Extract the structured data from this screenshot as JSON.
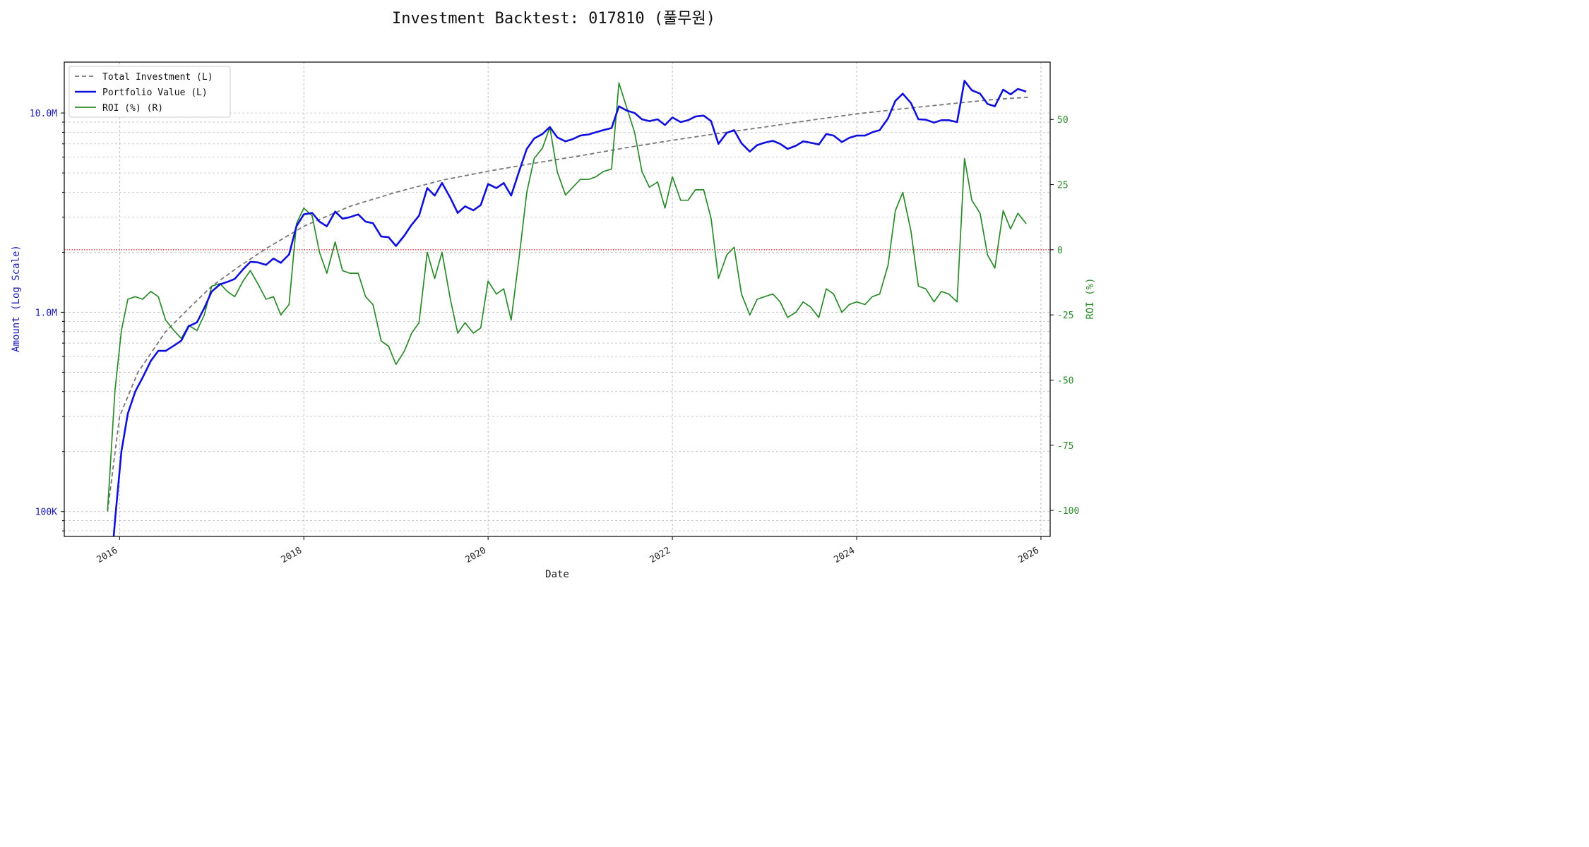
{
  "chart_data": {
    "type": "line",
    "title": "Investment Backtest: 017810 (풀무원)",
    "xlabel": "Date",
    "ylabel_left": "Amount (Log Scale)",
    "ylabel_right": "ROI (%)",
    "left_axis": {
      "scale": "log",
      "range": [
        75000,
        18000000
      ],
      "tick_values": [
        100000,
        1000000,
        10000000
      ],
      "tick_labels": [
        "100K",
        "1.0M",
        "10.0M"
      ],
      "color": "#1a1ab8"
    },
    "right_axis": {
      "scale": "linear",
      "range": [
        -110,
        72
      ],
      "ticks": [
        -100,
        -75,
        -50,
        -25,
        0,
        25,
        50
      ],
      "color": "#2a8a2a"
    },
    "x_axis": {
      "range": [
        2015.4,
        2026.1
      ],
      "ticks": [
        2016,
        2018,
        2020,
        2022,
        2024,
        2026
      ],
      "tick_labels": [
        "2016",
        "2018",
        "2020",
        "2022",
        "2024",
        "2026"
      ]
    },
    "grid": true,
    "legend_position": "top-left",
    "reference_line": {
      "axis": "right",
      "value": 0,
      "color": "#cc0000",
      "style": "dotted"
    },
    "series": [
      {
        "name": "Total Investment (L)",
        "axis": "left",
        "color": "#777777",
        "style": "dashed",
        "x": [
          2015.87,
          2016.0,
          2016.2,
          2016.5,
          2016.8,
          2017.0,
          2017.3,
          2017.6,
          2018.0,
          2018.5,
          2019.0,
          2019.5,
          2020.0,
          2020.5,
          2021.0,
          2021.5,
          2022.0,
          2022.5,
          2023.0,
          2023.5,
          2024.0,
          2024.5,
          2025.0,
          2025.5,
          2025.87
        ],
        "y": [
          100000,
          300000,
          500000,
          800000,
          1100000,
          1350000,
          1700000,
          2100000,
          2700000,
          3400000,
          4000000,
          4600000,
          5100000,
          5600000,
          6100000,
          6700000,
          7300000,
          7900000,
          8500000,
          9200000,
          9900000,
          10500000,
          11100000,
          11700000,
          12000000
        ]
      },
      {
        "name": "Portfolio Value (L)",
        "axis": "left",
        "color": "#1010dd",
        "style": "solid",
        "x": [
          2015.92,
          2015.95,
          2016.02,
          2016.09,
          2016.17,
          2016.25,
          2016.34,
          2016.42,
          2016.5,
          2016.59,
          2016.67,
          2016.75,
          2016.84,
          2016.92,
          2017.0,
          2017.09,
          2017.17,
          2017.25,
          2017.34,
          2017.42,
          2017.5,
          2017.59,
          2017.67,
          2017.75,
          2017.84,
          2017.92,
          2018.0,
          2018.09,
          2018.17,
          2018.25,
          2018.34,
          2018.42,
          2018.5,
          2018.59,
          2018.67,
          2018.75,
          2018.84,
          2018.92,
          2019.0,
          2019.09,
          2019.17,
          2019.25,
          2019.34,
          2019.42,
          2019.5,
          2019.59,
          2019.67,
          2019.75,
          2019.84,
          2019.92,
          2020.0,
          2020.09,
          2020.17,
          2020.25,
          2020.34,
          2020.42,
          2020.5,
          2020.59,
          2020.67,
          2020.75,
          2020.84,
          2020.92,
          2021.0,
          2021.09,
          2021.17,
          2021.25,
          2021.34,
          2021.42,
          2021.5,
          2021.59,
          2021.67,
          2021.75,
          2021.84,
          2021.92,
          2022.0,
          2022.09,
          2022.17,
          2022.25,
          2022.34,
          2022.42,
          2022.5,
          2022.59,
          2022.67,
          2022.75,
          2022.84,
          2022.92,
          2023.0,
          2023.09,
          2023.17,
          2023.25,
          2023.34,
          2023.42,
          2023.5,
          2023.59,
          2023.67,
          2023.75,
          2023.84,
          2023.92,
          2024.0,
          2024.09,
          2024.17,
          2024.25,
          2024.34,
          2024.42,
          2024.5,
          2024.59,
          2024.67,
          2024.75,
          2024.84,
          2024.92,
          2025.0,
          2025.09,
          2025.17,
          2025.25,
          2025.34,
          2025.42,
          2025.5,
          2025.59,
          2025.67,
          2025.75,
          2025.84
        ],
        "y": [
          60000,
          90000,
          200000,
          310000,
          400000,
          470000,
          570000,
          640000,
          640000,
          680000,
          720000,
          850000,
          890000,
          1050000,
          1270000,
          1380000,
          1420000,
          1470000,
          1640000,
          1790000,
          1780000,
          1730000,
          1860000,
          1770000,
          1950000,
          2700000,
          3100000,
          3150000,
          2850000,
          2700000,
          3200000,
          2950000,
          3000000,
          3100000,
          2850000,
          2800000,
          2400000,
          2380000,
          2150000,
          2420000,
          2750000,
          3050000,
          4200000,
          3850000,
          4450000,
          3750000,
          3150000,
          3400000,
          3250000,
          3450000,
          4400000,
          4200000,
          4450000,
          3850000,
          5150000,
          6600000,
          7450000,
          7850000,
          8500000,
          7550000,
          7200000,
          7400000,
          7700000,
          7800000,
          8000000,
          8200000,
          8400000,
          10800000,
          10300000,
          10000000,
          9300000,
          9100000,
          9300000,
          8700000,
          9500000,
          9000000,
          9200000,
          9600000,
          9700000,
          9100000,
          7000000,
          7950000,
          8200000,
          7050000,
          6400000,
          6900000,
          7100000,
          7250000,
          7000000,
          6600000,
          6850000,
          7200000,
          7100000,
          6950000,
          7850000,
          7700000,
          7150000,
          7500000,
          7700000,
          7700000,
          8000000,
          8200000,
          9400000,
          11500000,
          12500000,
          11200000,
          9300000,
          9250000,
          8950000,
          9200000,
          9200000,
          9000000,
          14500000,
          13000000,
          12500000,
          11100000,
          10800000,
          13100000,
          12400000,
          13200000,
          12800000
        ]
      },
      {
        "name": "ROI (%) (R)",
        "axis": "right",
        "color": "#2a8a2a",
        "style": "solid",
        "x": [
          2015.87,
          2015.95,
          2016.02,
          2016.09,
          2016.17,
          2016.25,
          2016.34,
          2016.42,
          2016.5,
          2016.59,
          2016.67,
          2016.75,
          2016.84,
          2016.92,
          2017.0,
          2017.09,
          2017.17,
          2017.25,
          2017.34,
          2017.42,
          2017.5,
          2017.59,
          2017.67,
          2017.75,
          2017.84,
          2017.92,
          2018.0,
          2018.09,
          2018.17,
          2018.25,
          2018.34,
          2018.42,
          2018.5,
          2018.59,
          2018.67,
          2018.75,
          2018.84,
          2018.92,
          2019.0,
          2019.09,
          2019.17,
          2019.25,
          2019.34,
          2019.42,
          2019.5,
          2019.59,
          2019.67,
          2019.75,
          2019.84,
          2019.92,
          2020.0,
          2020.09,
          2020.17,
          2020.25,
          2020.34,
          2020.42,
          2020.5,
          2020.59,
          2020.67,
          2020.75,
          2020.84,
          2020.92,
          2021.0,
          2021.09,
          2021.17,
          2021.25,
          2021.34,
          2021.42,
          2021.5,
          2021.59,
          2021.67,
          2021.75,
          2021.84,
          2021.92,
          2022.0,
          2022.09,
          2022.17,
          2022.25,
          2022.34,
          2022.42,
          2022.5,
          2022.59,
          2022.67,
          2022.75,
          2022.84,
          2022.92,
          2023.0,
          2023.09,
          2023.17,
          2023.25,
          2023.34,
          2023.42,
          2023.5,
          2023.59,
          2023.67,
          2023.75,
          2023.84,
          2023.92,
          2024.0,
          2024.09,
          2024.17,
          2024.25,
          2024.34,
          2024.42,
          2024.5,
          2024.59,
          2024.67,
          2024.75,
          2024.84,
          2024.92,
          2025.0,
          2025.09,
          2025.17,
          2025.25,
          2025.34,
          2025.42,
          2025.5,
          2025.59,
          2025.67,
          2025.75,
          2025.84
        ],
        "y": [
          -100,
          -54,
          -31,
          -19,
          -18,
          -19,
          -16,
          -18,
          -27,
          -31,
          -34,
          -29,
          -31,
          -25,
          -14,
          -13,
          -16,
          -18,
          -12,
          -8,
          -13,
          -19,
          -18,
          -25,
          -21,
          10,
          16,
          13,
          -1,
          -9,
          3,
          -8,
          -9,
          -9,
          -18,
          -21,
          -35,
          -37,
          -44,
          -39,
          -32,
          -28,
          -1,
          -11,
          -1,
          -19,
          -32,
          -28,
          -32,
          -30,
          -12,
          -17,
          -15,
          -27,
          -2,
          22,
          35,
          39,
          47,
          30,
          21,
          24,
          27,
          27,
          28,
          30,
          31,
          64,
          55,
          45,
          30,
          24,
          26,
          16,
          28,
          19,
          19,
          23,
          23,
          12,
          -11,
          -2,
          1,
          -17,
          -25,
          -19,
          -18,
          -17,
          -20,
          -26,
          -24,
          -20,
          -22,
          -26,
          -15,
          -17,
          -24,
          -21,
          -20,
          -21,
          -18,
          -17,
          -6,
          15,
          22,
          7,
          -14,
          -15,
          -20,
          -16,
          -17,
          -20,
          35,
          19,
          14,
          -2,
          -7,
          15,
          8,
          14,
          10
        ]
      }
    ]
  }
}
